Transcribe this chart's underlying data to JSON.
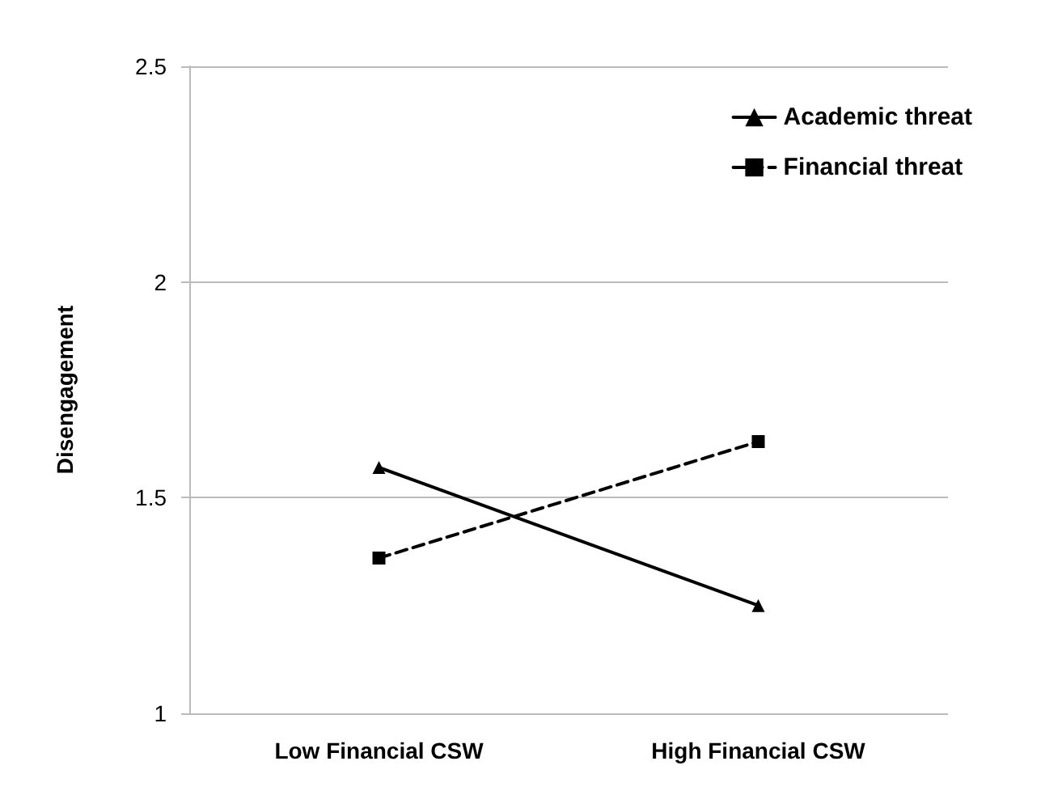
{
  "chart_data": {
    "type": "line",
    "ylabel": "Disengagement",
    "categories": [
      "Low Financial CSW",
      "High Financial CSW"
    ],
    "series": [
      {
        "name": "Academic threat",
        "color": "#000000",
        "values": [
          1.57,
          1.25
        ],
        "marker": "triangle",
        "line_style": "solid"
      },
      {
        "name": "Financial threat",
        "color": "#000000",
        "values": [
          1.36,
          1.63
        ],
        "marker": "square",
        "line_style": "dashed"
      }
    ],
    "ylim": [
      1,
      2.5
    ],
    "yticks": [
      1,
      1.5,
      2,
      2.5
    ],
    "grid": "y",
    "legend": "top right"
  }
}
